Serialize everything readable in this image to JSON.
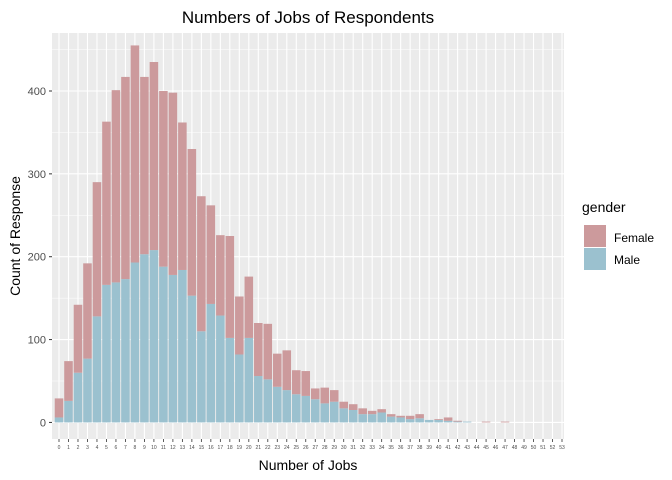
{
  "chart_data": {
    "type": "bar",
    "stacked": true,
    "title": "Numbers of Jobs of Respondents",
    "xlabel": "Number of Jobs",
    "ylabel": "Count of Response",
    "ylim": [
      -20,
      470
    ],
    "yticks": [
      0,
      100,
      200,
      300,
      400
    ],
    "grid": true,
    "legend_position": "right",
    "legend_title": "gender",
    "categories": [
      "0",
      "1",
      "2",
      "3",
      "4",
      "5",
      "6",
      "7",
      "8",
      "9",
      "10",
      "11",
      "12",
      "13",
      "14",
      "15",
      "16",
      "17",
      "18",
      "19",
      "20",
      "21",
      "22",
      "23",
      "24",
      "25",
      "26",
      "27",
      "28",
      "29",
      "30",
      "31",
      "32",
      "33",
      "34",
      "35",
      "36",
      "37",
      "38",
      "39",
      "40",
      "41",
      "42",
      "43",
      "44",
      "45",
      "46",
      "47",
      "48",
      "49",
      "50",
      "51",
      "52",
      "53"
    ],
    "series": [
      {
        "name": "Female",
        "color": "#cc9a9c",
        "values": [
          23,
          48,
          82,
          115,
          162,
          197,
          232,
          244,
          262,
          214,
          227,
          212,
          220,
          178,
          177,
          163,
          119,
          97,
          123,
          70,
          74,
          64,
          67,
          40,
          48,
          29,
          30,
          13,
          19,
          14,
          8,
          7,
          7,
          4,
          4,
          3,
          2,
          4,
          5,
          0,
          1,
          4,
          1,
          0,
          0,
          1,
          0,
          1,
          0,
          0,
          0,
          0,
          0,
          0
        ]
      },
      {
        "name": "Male",
        "color": "#9bc1cf",
        "values": [
          6,
          26,
          60,
          77,
          128,
          166,
          169,
          173,
          193,
          203,
          208,
          188,
          178,
          184,
          153,
          110,
          143,
          129,
          102,
          82,
          102,
          56,
          52,
          43,
          39,
          34,
          32,
          28,
          23,
          25,
          17,
          15,
          10,
          10,
          12,
          7,
          6,
          4,
          5,
          3,
          3,
          2,
          1,
          1,
          0,
          0,
          0,
          0,
          0,
          0,
          0,
          0,
          0,
          0
        ]
      }
    ]
  }
}
